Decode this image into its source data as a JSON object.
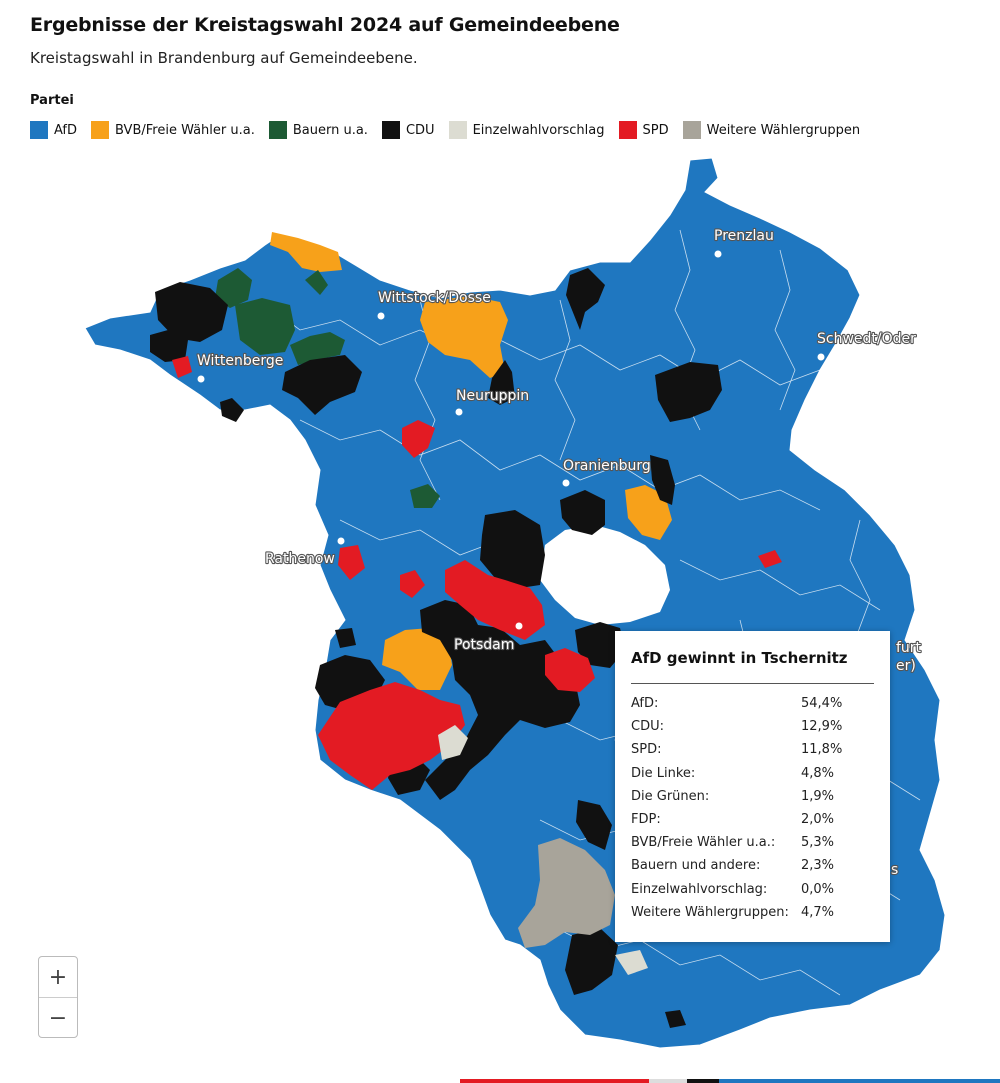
{
  "header": {
    "title": "Ergebnisse der Kreistagswahl 2024 auf Gemeindeebene",
    "subtitle": "Kreistagswahl in Brandenburg auf Gemeindeebene."
  },
  "legend": {
    "title": "Partei",
    "items": [
      {
        "label": "AfD",
        "color": "#1f77c0"
      },
      {
        "label": "BVB/Freie Wähler u.a.",
        "color": "#f7a11a"
      },
      {
        "label": "Bauern u.a.",
        "color": "#1d5a34"
      },
      {
        "label": "CDU",
        "color": "#111111"
      },
      {
        "label": "Einzelwahlvorschlag",
        "color": "#dcdcd2"
      },
      {
        "label": "SPD",
        "color": "#e31b23"
      },
      {
        "label": "Weitere Wählergruppen",
        "color": "#a8a49a"
      }
    ]
  },
  "map": {
    "cities": [
      {
        "name": "Prenzlau"
      },
      {
        "name": "Wittstock/Dosse"
      },
      {
        "name": "Schwedt/Oder"
      },
      {
        "name": "Wittenberge"
      },
      {
        "name": "Neuruppin"
      },
      {
        "name": "Oranienburg"
      },
      {
        "name": "Rathenow"
      },
      {
        "name": "Potsdam"
      }
    ],
    "partial_labels": [
      "furt",
      "er)",
      "s"
    ]
  },
  "zoom": {
    "in_label": "+",
    "out_label": "−"
  },
  "tooltip": {
    "title": "AfD gewinnt in Tschernitz",
    "rows": [
      {
        "party": "AfD:",
        "value": "54,4%"
      },
      {
        "party": "CDU:",
        "value": "12,9%"
      },
      {
        "party": "SPD:",
        "value": "11,8%"
      },
      {
        "party": "Die Linke:",
        "value": "4,8%"
      },
      {
        "party": "Die Grünen:",
        "value": "1,9%"
      },
      {
        "party": "FDP:",
        "value": "2,0%"
      },
      {
        "party": "BVB/Freie Wähler u.a.:",
        "value": "5,3%"
      },
      {
        "party": "Bauern und andere:",
        "value": "2,3%"
      },
      {
        "party": "Einzelwahlvorschlag:",
        "value": "0,0%"
      },
      {
        "party": "Weitere Wählergruppen:",
        "value": "4,7%"
      }
    ]
  }
}
